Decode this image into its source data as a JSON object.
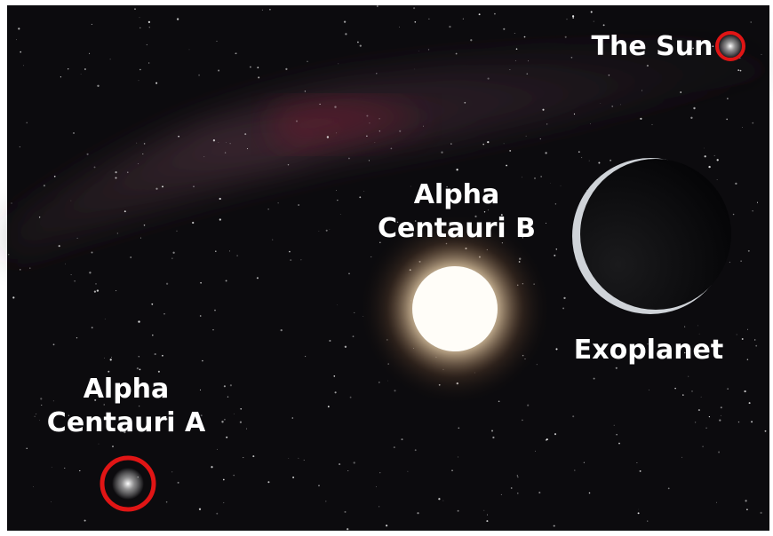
{
  "labels": {
    "sun": "The Sun",
    "alpha_b": [
      "Alpha",
      "Centauri B"
    ],
    "exoplanet": "Exoplanet",
    "alpha_a": [
      "Alpha",
      "Centauri A"
    ]
  }
}
